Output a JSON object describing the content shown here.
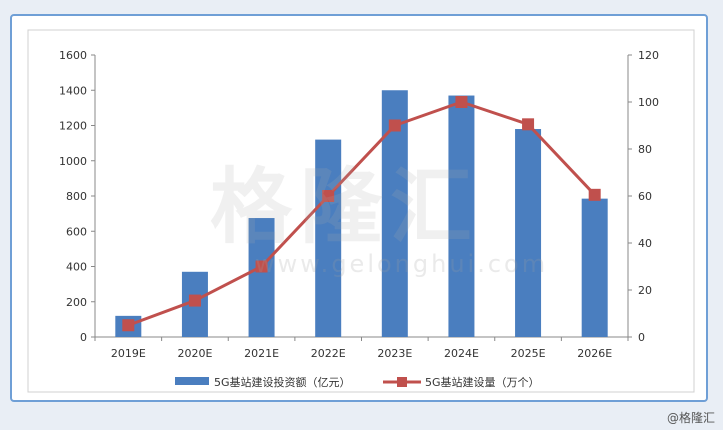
{
  "chart_data": {
    "type": "bar",
    "categories": [
      "2019E",
      "2020E",
      "2021E",
      "2022E",
      "2023E",
      "2024E",
      "2025E",
      "2026E"
    ],
    "series": [
      {
        "name": "5G基站建设投资额（亿元）",
        "type": "bar",
        "axis": "left",
        "color": "#4a7ebf",
        "values": [
          120,
          370,
          675,
          1120,
          1400,
          1370,
          1180,
          785
        ]
      },
      {
        "name": "5G基站建设量（万个）",
        "type": "line",
        "axis": "right",
        "color": "#c0504d",
        "values": [
          5,
          15.5,
          30,
          60,
          90,
          100,
          90.5,
          60.5
        ]
      }
    ],
    "y_left": {
      "min": 0,
      "max": 1600,
      "step": 200
    },
    "y_right": {
      "min": 0,
      "max": 120,
      "step": 20
    },
    "grid": false,
    "legend_position": "bottom"
  },
  "watermark": {
    "text": "格隆汇",
    "url": "www.gelonghui.com"
  },
  "corner_mark": "@格隆汇"
}
